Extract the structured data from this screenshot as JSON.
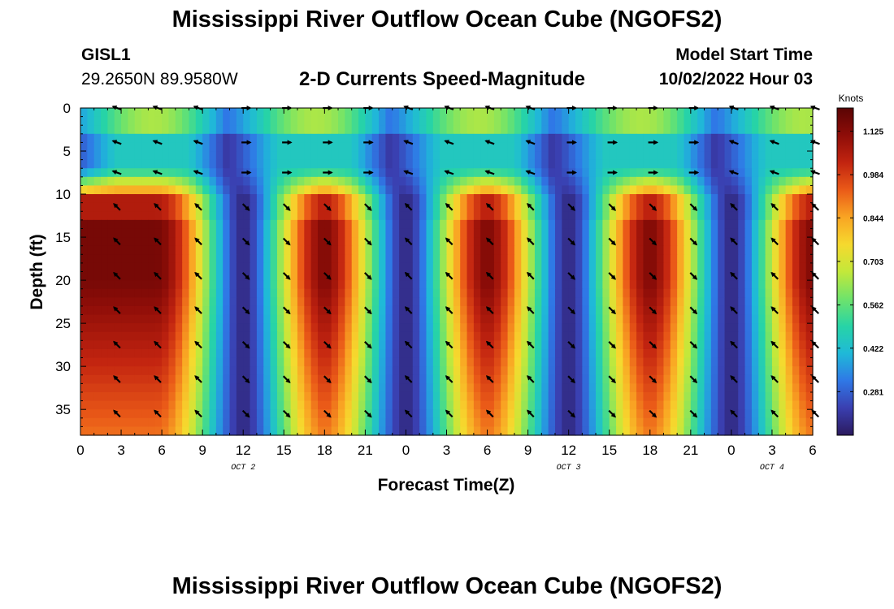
{
  "page": {
    "title": "Mississippi River Outflow Ocean Cube (NGOFS2)",
    "title_repeat": "Mississippi River Outflow Ocean Cube (NGOFS2)",
    "station_id": "GISL1",
    "station_coords": "29.2650N  89.9580W",
    "subtitle": "2-D Currents Speed-Magnitude",
    "model_start_label": "Model Start Time",
    "model_start_value": "10/02/2022 Hour 03"
  },
  "chart_data": {
    "type": "heatmap",
    "title": "2-D Currents Speed-Magnitude",
    "xlabel": "Forecast Time(Z)",
    "ylabel": "Depth (ft)",
    "x_range_hours": [
      0,
      54
    ],
    "y_range_ft": [
      0,
      38
    ],
    "x_tick_labels": [
      "0",
      "3",
      "6",
      "9",
      "12",
      "15",
      "18",
      "21",
      "0",
      "3",
      "6",
      "9",
      "12",
      "15",
      "18",
      "21",
      "0",
      "3",
      "6"
    ],
    "y_ticks": [
      0,
      5,
      10,
      15,
      20,
      25,
      30,
      35
    ],
    "date_labels": [
      {
        "text": "OCT 2",
        "hour": 12
      },
      {
        "text": "OCT 3",
        "hour": 36
      },
      {
        "text": "OCT 4",
        "hour": 51
      }
    ],
    "colorbar": {
      "label": "Knots",
      "min": 0.14,
      "max": 1.2,
      "ticks": [
        "1.125",
        "0.984",
        "0.844",
        "0.703",
        "0.562",
        "0.422",
        "0.281"
      ],
      "colors": [
        "#2b1a5e",
        "#3a3fb0",
        "#2f78e6",
        "#1fb9d8",
        "#27d4a6",
        "#6fe36b",
        "#c3e83a",
        "#f6d92e",
        "#f9a423",
        "#ea5a18",
        "#c22410",
        "#8e0d08",
        "#5a0404"
      ]
    },
    "surface_layer_max_depth_ft": 10,
    "peak_speed_hours": [
      5.5,
      17.5,
      30,
      42.5,
      54.5
    ],
    "slack_hours": [
      12,
      24,
      36,
      48
    ],
    "peak_speed_knots": 1.15,
    "slack_speed_knots": 0.18,
    "vector_columns_hours": [
      2.7,
      5.7,
      8.7,
      12.2,
      15.2,
      18.2,
      21.2,
      24.2,
      27.2,
      30.2,
      33.2,
      36.2,
      39.2,
      42.2,
      45.2,
      48.2,
      51.2,
      54.2
    ],
    "vector_rows_ft": [
      0,
      4,
      7.5,
      11.5,
      15.5,
      19.5,
      23.5,
      27.5,
      31.5,
      35.5
    ]
  }
}
